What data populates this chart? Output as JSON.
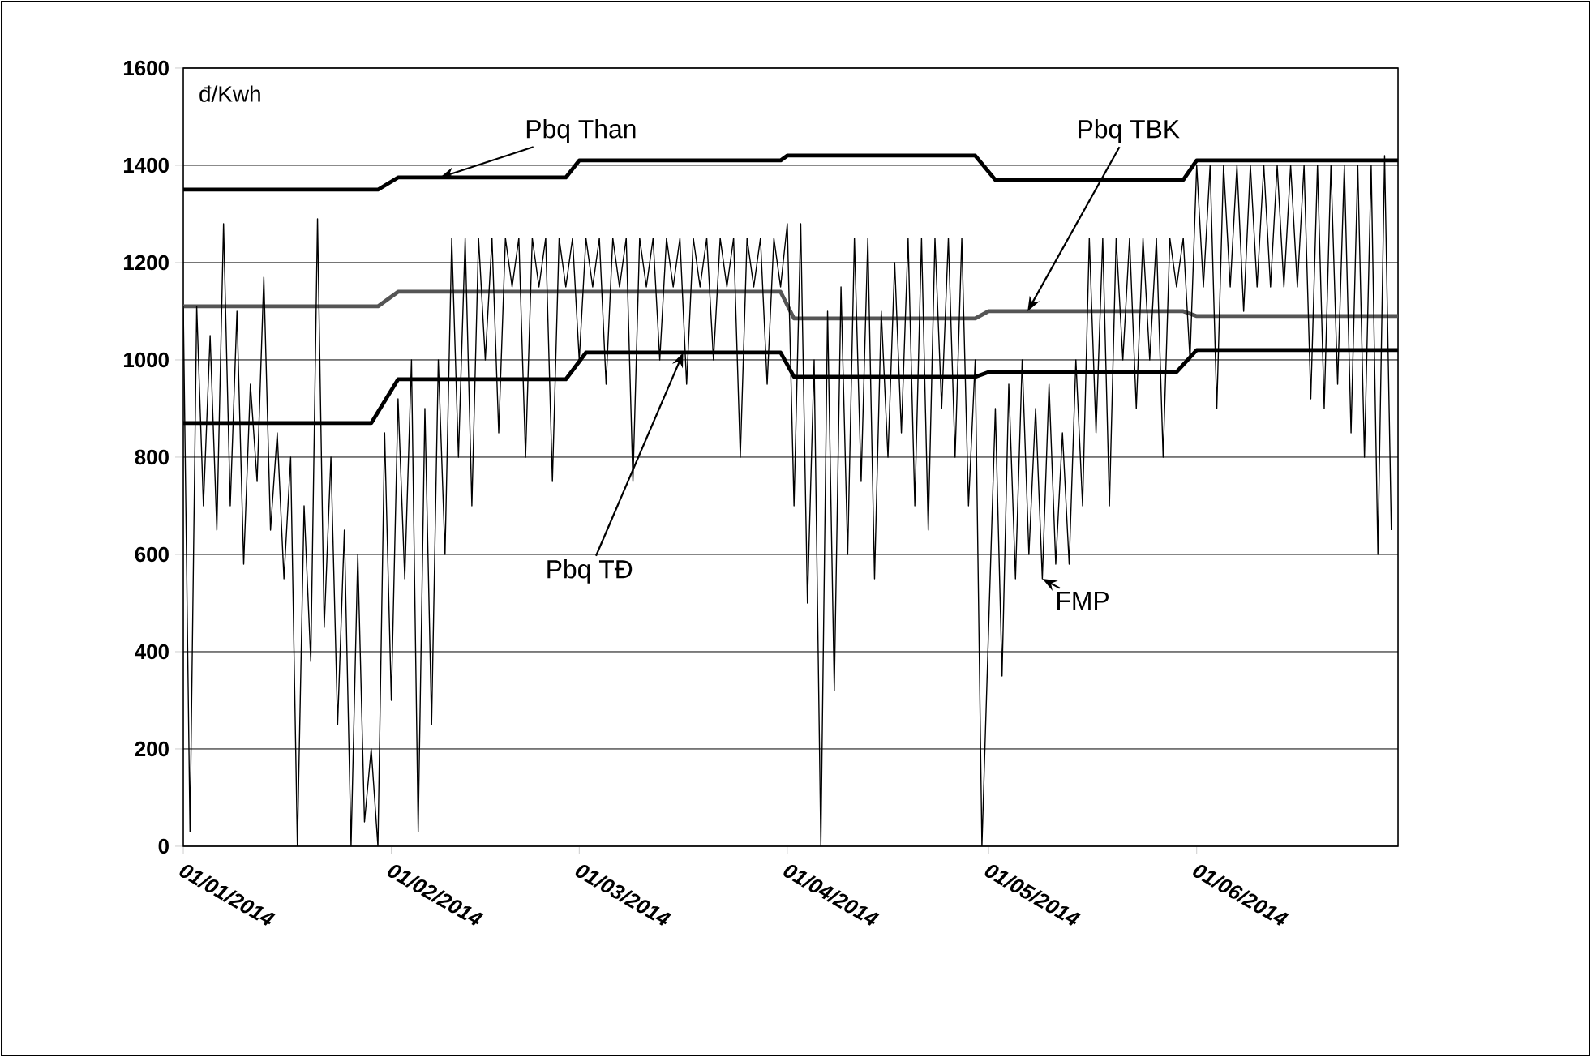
{
  "chart_data": {
    "type": "line",
    "ylabel": "đ/Kwh",
    "xlim": [
      "2014-01-01",
      "2014-07-01"
    ],
    "xticks": [
      {
        "value": "2014-01-01",
        "label": "01/01/2014"
      },
      {
        "value": "2014-02-01",
        "label": "01/02/2014"
      },
      {
        "value": "2014-03-01",
        "label": "01/03/2014"
      },
      {
        "value": "2014-04-01",
        "label": "01/04/2014"
      },
      {
        "value": "2014-05-01",
        "label": "01/05/2014"
      },
      {
        "value": "2014-06-01",
        "label": "01/06/2014"
      }
    ],
    "ylim": [
      0,
      1600
    ],
    "yticks": [
      0,
      200,
      400,
      600,
      800,
      1000,
      1200,
      1400,
      1600
    ],
    "grid": "y",
    "series": [
      {
        "name": "Pbq Than",
        "color": "#000000",
        "x": [
          "2014-01-01",
          "2014-01-30",
          "2014-02-02",
          "2014-02-27",
          "2014-03-01",
          "2014-03-31",
          "2014-04-01",
          "2014-04-29",
          "2014-05-02",
          "2014-05-30",
          "2014-06-01",
          "2014-07-01"
        ],
        "values": [
          1350,
          1350,
          1375,
          1375,
          1410,
          1410,
          1420,
          1420,
          1370,
          1370,
          1410,
          1410
        ]
      },
      {
        "name": "Pbq TBK",
        "color": "#555555",
        "x": [
          "2014-01-01",
          "2014-01-30",
          "2014-02-02",
          "2014-03-31",
          "2014-04-02",
          "2014-04-29",
          "2014-05-01",
          "2014-05-30",
          "2014-06-01",
          "2014-07-01"
        ],
        "values": [
          1110,
          1110,
          1140,
          1140,
          1085,
          1085,
          1100,
          1100,
          1090,
          1090
        ]
      },
      {
        "name": "Pbq TĐ",
        "color": "#000000",
        "x": [
          "2014-01-01",
          "2014-01-29",
          "2014-02-02",
          "2014-02-27",
          "2014-03-02",
          "2014-03-31",
          "2014-04-02",
          "2014-04-29",
          "2014-05-01",
          "2014-05-29",
          "2014-06-01",
          "2014-07-01"
        ],
        "values": [
          870,
          870,
          960,
          960,
          1015,
          1015,
          965,
          965,
          975,
          975,
          1020,
          1020
        ]
      },
      {
        "name": "FMP",
        "color": "#000000",
        "x": [
          "2014-01-01",
          "2014-01-02",
          "2014-01-03",
          "2014-01-04",
          "2014-01-05",
          "2014-01-06",
          "2014-01-07",
          "2014-01-08",
          "2014-01-09",
          "2014-01-10",
          "2014-01-11",
          "2014-01-12",
          "2014-01-13",
          "2014-01-14",
          "2014-01-15",
          "2014-01-16",
          "2014-01-17",
          "2014-01-18",
          "2014-01-19",
          "2014-01-20",
          "2014-01-21",
          "2014-01-22",
          "2014-01-23",
          "2014-01-24",
          "2014-01-25",
          "2014-01-26",
          "2014-01-27",
          "2014-01-28",
          "2014-01-29",
          "2014-01-30",
          "2014-01-31",
          "2014-02-01",
          "2014-02-02",
          "2014-02-03",
          "2014-02-04",
          "2014-02-05",
          "2014-02-06",
          "2014-02-07",
          "2014-02-08",
          "2014-02-09",
          "2014-02-10",
          "2014-02-11",
          "2014-02-12",
          "2014-02-13",
          "2014-02-14",
          "2014-02-15",
          "2014-02-16",
          "2014-02-17",
          "2014-02-18",
          "2014-02-19",
          "2014-02-20",
          "2014-02-21",
          "2014-02-22",
          "2014-02-23",
          "2014-02-24",
          "2014-02-25",
          "2014-02-26",
          "2014-02-27",
          "2014-02-28",
          "2014-03-01",
          "2014-03-02",
          "2014-03-03",
          "2014-03-04",
          "2014-03-05",
          "2014-03-06",
          "2014-03-07",
          "2014-03-08",
          "2014-03-09",
          "2014-03-10",
          "2014-03-11",
          "2014-03-12",
          "2014-03-13",
          "2014-03-14",
          "2014-03-15",
          "2014-03-16",
          "2014-03-17",
          "2014-03-18",
          "2014-03-19",
          "2014-03-20",
          "2014-03-21",
          "2014-03-22",
          "2014-03-23",
          "2014-03-24",
          "2014-03-25",
          "2014-03-26",
          "2014-03-27",
          "2014-03-28",
          "2014-03-29",
          "2014-03-30",
          "2014-03-31",
          "2014-04-01",
          "2014-04-02",
          "2014-04-03",
          "2014-04-04",
          "2014-04-05",
          "2014-04-06",
          "2014-04-07",
          "2014-04-08",
          "2014-04-09",
          "2014-04-10",
          "2014-04-11",
          "2014-04-12",
          "2014-04-13",
          "2014-04-14",
          "2014-04-15",
          "2014-04-16",
          "2014-04-17",
          "2014-04-18",
          "2014-04-19",
          "2014-04-20",
          "2014-04-21",
          "2014-04-22",
          "2014-04-23",
          "2014-04-24",
          "2014-04-25",
          "2014-04-26",
          "2014-04-27",
          "2014-04-28",
          "2014-04-29",
          "2014-04-30",
          "2014-05-01",
          "2014-05-02",
          "2014-05-03",
          "2014-05-04",
          "2014-05-05",
          "2014-05-06",
          "2014-05-07",
          "2014-05-08",
          "2014-05-09",
          "2014-05-10",
          "2014-05-11",
          "2014-05-12",
          "2014-05-13",
          "2014-05-14",
          "2014-05-15",
          "2014-05-16",
          "2014-05-17",
          "2014-05-18",
          "2014-05-19",
          "2014-05-20",
          "2014-05-21",
          "2014-05-22",
          "2014-05-23",
          "2014-05-24",
          "2014-05-25",
          "2014-05-26",
          "2014-05-27",
          "2014-05-28",
          "2014-05-29",
          "2014-05-30",
          "2014-05-31",
          "2014-06-01",
          "2014-06-02",
          "2014-06-03",
          "2014-06-04",
          "2014-06-05",
          "2014-06-06",
          "2014-06-07",
          "2014-06-08",
          "2014-06-09",
          "2014-06-10",
          "2014-06-11",
          "2014-06-12",
          "2014-06-13",
          "2014-06-14",
          "2014-06-15",
          "2014-06-16",
          "2014-06-17",
          "2014-06-18",
          "2014-06-19",
          "2014-06-20",
          "2014-06-21",
          "2014-06-22",
          "2014-06-23",
          "2014-06-24",
          "2014-06-25",
          "2014-06-26",
          "2014-06-27",
          "2014-06-28",
          "2014-06-29",
          "2014-06-30"
        ],
        "values": [
          1110,
          30,
          1110,
          700,
          1050,
          650,
          1280,
          700,
          1100,
          580,
          950,
          750,
          1170,
          650,
          850,
          550,
          800,
          0,
          700,
          380,
          1290,
          450,
          800,
          250,
          650,
          0,
          600,
          50,
          200,
          0,
          850,
          300,
          920,
          550,
          1000,
          30,
          900,
          250,
          1000,
          600,
          1250,
          800,
          1250,
          700,
          1250,
          1000,
          1250,
          850,
          1250,
          1150,
          1250,
          800,
          1250,
          1150,
          1250,
          750,
          1250,
          1150,
          1250,
          1000,
          1250,
          1150,
          1250,
          950,
          1250,
          1150,
          1250,
          750,
          1250,
          1150,
          1250,
          1000,
          1250,
          1150,
          1250,
          950,
          1250,
          1150,
          1250,
          1000,
          1250,
          1150,
          1250,
          800,
          1250,
          1150,
          1250,
          950,
          1250,
          1150,
          1280,
          700,
          1280,
          500,
          1000,
          0,
          1100,
          320,
          1150,
          600,
          1250,
          750,
          1250,
          550,
          1100,
          800,
          1200,
          850,
          1250,
          700,
          1250,
          650,
          1250,
          900,
          1250,
          800,
          1250,
          700,
          1000,
          0,
          450,
          900,
          350,
          950,
          550,
          1000,
          600,
          900,
          550,
          950,
          580,
          850,
          580,
          1000,
          700,
          1250,
          850,
          1250,
          700,
          1250,
          1000,
          1250,
          900,
          1250,
          1000,
          1250,
          800,
          1250,
          1150,
          1250,
          1000,
          1400,
          1150,
          1400,
          900,
          1400,
          1150,
          1400,
          1100,
          1400,
          1150,
          1400,
          1150,
          1400,
          1150,
          1400,
          1150,
          1400,
          920,
          1400,
          900,
          1400,
          950,
          1400,
          850,
          1400,
          800,
          1400,
          600,
          1420,
          650
        ]
      }
    ]
  }
}
